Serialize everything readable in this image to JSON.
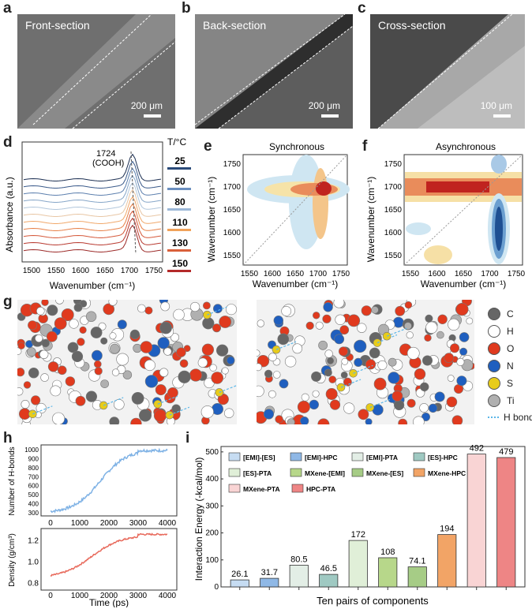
{
  "panels": {
    "a": {
      "letter": "a",
      "title": "Front-section",
      "scale": "200 μm"
    },
    "b": {
      "letter": "b",
      "title": "Back-section",
      "scale": "200 μm"
    },
    "c": {
      "letter": "c",
      "title": "Cross-section",
      "scale": "100 μm"
    },
    "d": {
      "letter": "d",
      "ylabel": "Absorbance (a.u.)",
      "xlabel": "Wavenumber (cm⁻¹)",
      "annotation": "1724",
      "annotation2": "(COOH)",
      "temp_header": "T/°C",
      "temperatures": [
        "25",
        "50",
        "80",
        "110",
        "130",
        "150"
      ],
      "temp_colors": [
        "#2b4b7a",
        "#6b8fbf",
        "#9cb8d8",
        "#f0a25a",
        "#d9603a",
        "#b42a2a"
      ],
      "ticks": [
        "1500",
        "1550",
        "1600",
        "1650",
        "1700",
        "1750"
      ]
    },
    "e": {
      "letter": "e",
      "title": "Synchronous",
      "ylabel": "Wavenumber (cm⁻¹)",
      "xlabel": "Wavenumber (cm⁻¹)",
      "xticks": [
        "1550",
        "1600",
        "1650",
        "1700",
        "1750"
      ],
      "yticks": [
        "1750",
        "1700",
        "1650",
        "1600",
        "1550"
      ]
    },
    "f": {
      "letter": "f",
      "title": "Asynchronous",
      "ylabel": "Wavenumber (cm⁻¹)",
      "xlabel": "Wavenumber (cm⁻¹)",
      "xticks": [
        "1550",
        "1600",
        "1650",
        "1700",
        "1750"
      ],
      "yticks": [
        "1750",
        "1700",
        "1650",
        "1600",
        "1550"
      ]
    },
    "g": {
      "letter": "g",
      "legend": [
        {
          "label": "C",
          "color": "#666666"
        },
        {
          "label": "H",
          "color": "#ffffff"
        },
        {
          "label": "O",
          "color": "#e03a1e"
        },
        {
          "label": "N",
          "color": "#1f5fbf"
        },
        {
          "label": "S",
          "color": "#e8cc1a"
        },
        {
          "label": "Ti",
          "color": "#b0b0b0"
        }
      ],
      "hbond_label": "H bond"
    },
    "h": {
      "letter": "h",
      "top_ylabel": "Number of H-bonds",
      "bottom_ylabel": "Density (g/cm³)",
      "xlabel": "Time (ps)",
      "top_yticks": [
        "300",
        "400",
        "500",
        "600",
        "700",
        "800",
        "900",
        "1000"
      ],
      "bottom_yticks": [
        "0.8",
        "1.0",
        "1.2"
      ],
      "xticks": [
        "0",
        "1000",
        "2000",
        "3000",
        "4000"
      ]
    },
    "i": {
      "letter": "i",
      "ylabel": "Interaction Energy (-kcal/mol)",
      "xlabel": "Ten pairs of components",
      "yticks": [
        "0",
        "100",
        "200",
        "300",
        "400",
        "500"
      ]
    }
  },
  "chart_data": {
    "type": "bar",
    "categories": [
      "[EMI]-[ES]",
      "[EMI]-HPC",
      "[EMI]-PTA",
      "[ES]-HPC",
      "[ES]-PTA",
      "MXene-[EMI]",
      "MXene-[ES]",
      "MXene-HPC",
      "MXene-PTA",
      "HPC-PTA"
    ],
    "values": [
      26.1,
      31.7,
      80.5,
      46.5,
      172,
      108,
      74.1,
      194,
      492,
      479
    ],
    "labels": [
      "26.1",
      "31.7",
      "80.5",
      "46.5",
      "172",
      "108",
      "74.1",
      "194",
      "492",
      "479"
    ],
    "colors": [
      "#c6dcf2",
      "#8fb8e6",
      "#e3eee6",
      "#9fc9c2",
      "#e0efd8",
      "#b7d78a",
      "#a6cc86",
      "#f2a466",
      "#f9d4d4",
      "#ee8585"
    ],
    "ylabel": "Interaction Energy (-kcal/mol)",
    "xlabel": "Ten pairs of components",
    "ylim": [
      0,
      520
    ]
  }
}
